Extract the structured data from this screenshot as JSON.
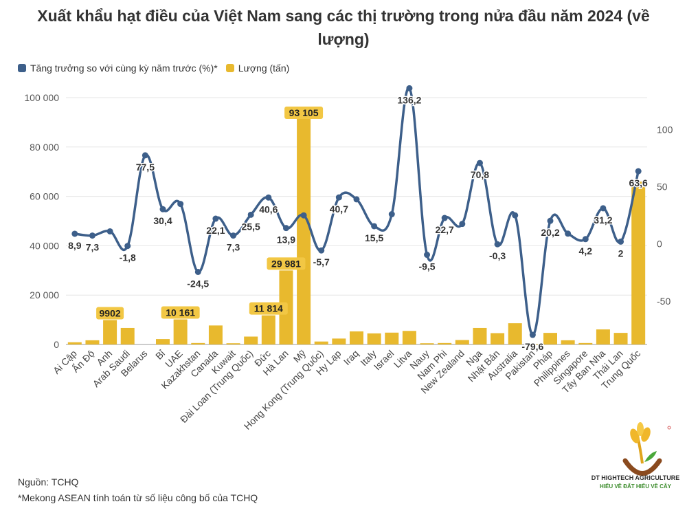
{
  "chart_data": {
    "type": "bar+line",
    "title": "Xuất khẩu hạt điều của Việt Nam sang các thị trường trong nửa đầu năm 2024 (về lượng)",
    "categories": [
      "Ai Cập",
      "Ấn Độ",
      "Anh",
      "Arab Saudi",
      "Belarus",
      "Bỉ",
      "UAE",
      "Kazakhstan",
      "Canada",
      "Kuwait",
      "Đài Loan (Trung Quốc)",
      "Đức",
      "Hà Lan",
      "Mỹ",
      "Hong Kong (Trung Quốc)",
      "Hy Lạp",
      "Iraq",
      "Italy",
      "Israel",
      "Litva",
      "Nauy",
      "Nam Phi",
      "New Zealand",
      "Nga",
      "Nhật Bản",
      "Australia",
      "Pakistan",
      "Pháp",
      "Philippines",
      "Singapore",
      "Tây Ban Nha",
      "Thái Lan",
      "Trung Quốc"
    ],
    "series": [
      {
        "name": "Tăng trưởng so với cùng kỳ năm trước (%)*",
        "axis": "right",
        "type": "line",
        "color": "#3d5f8a",
        "values": [
          8.9,
          7.3,
          11,
          -1.8,
          77.5,
          30.4,
          35,
          -24.5,
          22.1,
          7.3,
          25.5,
          40.6,
          13.9,
          25,
          -5.7,
          40.7,
          39,
          15.5,
          26,
          136.2,
          -9.5,
          22.7,
          17.5,
          70.8,
          -0.3,
          25,
          -79.6,
          20.2,
          9,
          4.2,
          31.2,
          2,
          63.6
        ]
      },
      {
        "name": "Lượng (tấn)",
        "axis": "left",
        "type": "bar",
        "color": "#e8b92e",
        "values": [
          900,
          1700,
          9902,
          6700,
          0,
          2200,
          10161,
          600,
          7700,
          500,
          3200,
          11814,
          29981,
          93105,
          1200,
          2400,
          5300,
          4500,
          4800,
          5500,
          500,
          600,
          1800,
          6700,
          4600,
          8600,
          200,
          4700,
          1700,
          600,
          6100,
          4700,
          66000
        ]
      }
    ],
    "labels_line": [
      "8,9",
      "7,3",
      "",
      "-1,8",
      "77,5",
      "30,4",
      "",
      "-24,5",
      "22,1",
      "7,3",
      "25,5",
      "40,6",
      "13,9",
      "",
      "-5,7",
      "40,7",
      "",
      "15,5",
      "",
      "136,2",
      "-9,5",
      "22,7",
      "",
      "70,8",
      "-0,3",
      "",
      "-79,6",
      "20,2",
      "",
      "4,2",
      "31,2",
      "2",
      "63,6"
    ],
    "labels_bar": [
      "",
      "",
      "9902",
      "",
      "",
      "",
      "10 161",
      "",
      "",
      "",
      "",
      "11 814",
      "29 981",
      "93 105",
      "",
      "",
      "",
      "",
      "",
      "",
      "",
      "",
      "",
      "",
      "",
      "",
      "",
      "",
      "",
      "",
      "",
      "",
      ""
    ],
    "yleft": {
      "min": 0,
      "max": 100000,
      "ticks": [
        "0",
        "20 000",
        "40 000",
        "60 000",
        "80 000",
        "100 000"
      ]
    },
    "yright": {
      "min": -88,
      "max": 128,
      "ticks": [
        -50,
        0,
        50,
        100
      ],
      "tick_labels": [
        "-50",
        "0",
        "50",
        "100"
      ]
    },
    "grid": true,
    "legend_position": "top-left"
  },
  "legend": {
    "line_label": "Tăng trưởng so với cùng kỳ năm trước (%)*",
    "bar_label": "Lượng (tấn)"
  },
  "footer": {
    "source": "Nguồn: TCHQ",
    "note": "*Mekong ASEAN tính toán từ số liệu công bố của TCHQ"
  },
  "logo": {
    "name": "DT HIGHTECH AGRICULTURE",
    "slogan": "HIỂU VỀ ĐẤT  HIỂU VỀ CÂY"
  }
}
